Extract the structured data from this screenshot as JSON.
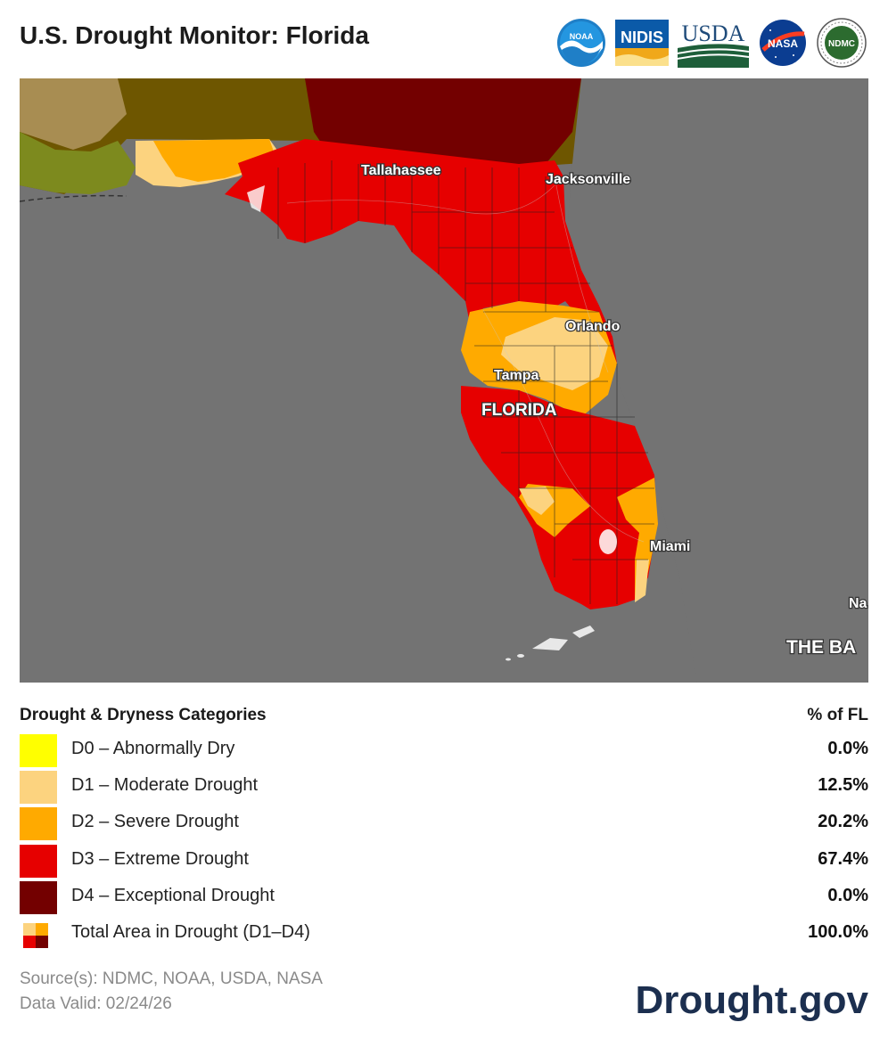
{
  "header": {
    "title": "U.S. Drought Monitor: Florida",
    "logos": {
      "noaa": "NOAA",
      "nidis": "NIDIS",
      "usda": "USDA",
      "nasa": "NASA",
      "ndmc": "NDMC"
    }
  },
  "map": {
    "labels": {
      "tallahassee": "Tallahassee",
      "jacksonville": "Jacksonville",
      "orlando": "Orlando",
      "tampa": "Tampa",
      "florida": "FLORIDA",
      "miami": "Miami",
      "nassau_partial": "Na",
      "bahamas_partial": "THE BA"
    },
    "colors": {
      "water": "#737373",
      "land": "#a3a3a3",
      "d1": "#fcd37f",
      "d2": "#ffaa00",
      "d3": "#e60000",
      "d4": "#730000",
      "neighbor_olive": "#6e5600",
      "neighbor_khaki": "#a88d52",
      "neighbor_green": "#7d8a1e"
    }
  },
  "legend": {
    "heading": "Drought & Dryness Categories",
    "pct_heading": "% of FL",
    "rows": [
      {
        "label": "D0 – Abnormally Dry",
        "value": "0.0%",
        "color": "#ffff00"
      },
      {
        "label": "D1 – Moderate Drought",
        "value": "12.5%",
        "color": "#fcd37f"
      },
      {
        "label": "D2 – Severe Drought",
        "value": "20.2%",
        "color": "#ffaa00"
      },
      {
        "label": "D3 – Extreme Drought",
        "value": "67.4%",
        "color": "#e60000"
      },
      {
        "label": "D4 – Exceptional Drought",
        "value": "0.0%",
        "color": "#730000"
      }
    ],
    "total": {
      "label": "Total Area in Drought (D1–D4)",
      "value": "100.0%"
    }
  },
  "footer": {
    "source": "Source(s): NDMC, NOAA, USDA, NASA",
    "valid": "Data Valid: 02/24/26",
    "brand": "Drought.gov"
  }
}
